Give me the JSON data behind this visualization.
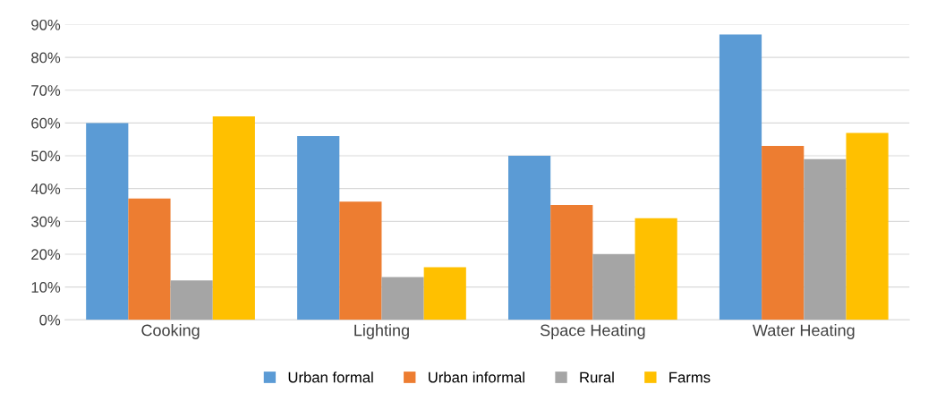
{
  "chart_data": {
    "type": "bar",
    "categories": [
      "Cooking",
      "Lighting",
      "Space Heating",
      "Water Heating"
    ],
    "series": [
      {
        "name": "Urban formal",
        "color": "#5b9bd5",
        "values": [
          60,
          56,
          50,
          87
        ]
      },
      {
        "name": "Urban informal",
        "color": "#ed7d31",
        "values": [
          37,
          36,
          35,
          53
        ]
      },
      {
        "name": "Rural",
        "color": "#a5a5a5",
        "values": [
          12,
          13,
          20,
          49
        ]
      },
      {
        "name": "Farms",
        "color": "#ffc000",
        "values": [
          62,
          16,
          31,
          57
        ]
      }
    ],
    "ylim": [
      0,
      90
    ],
    "yticks": [
      {
        "value": 0,
        "label": "0%"
      },
      {
        "value": 10,
        "label": "10%"
      },
      {
        "value": 20,
        "label": "20%"
      },
      {
        "value": 30,
        "label": "30%"
      },
      {
        "value": 40,
        "label": "40%"
      },
      {
        "value": 50,
        "label": "50%"
      },
      {
        "value": 60,
        "label": "60%"
      },
      {
        "value": 70,
        "label": "70%"
      },
      {
        "value": 80,
        "label": "80%"
      },
      {
        "value": 90,
        "label": "90%"
      }
    ],
    "grid": "y",
    "legend": "bottom"
  }
}
